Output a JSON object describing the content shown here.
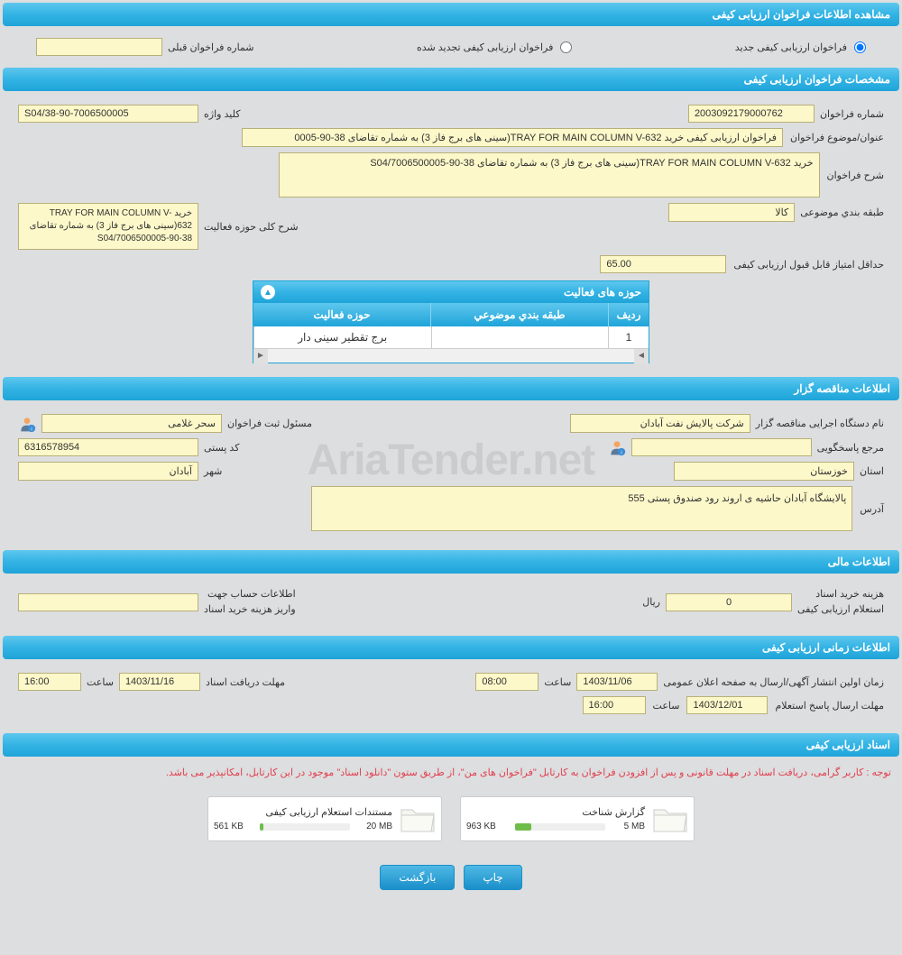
{
  "headers": {
    "main": "مشاهده اطلاعات فراخوان ارزیابی کیفی",
    "spec": "مشخصات فراخوان ارزیابی کیفی",
    "tenderer": "اطلاعات مناقصه گزار",
    "financial": "اطلاعات مالی",
    "timing": "اطلاعات زمانی ارزیابی کیفی",
    "docs": "اسناد ارزیابی کیفی"
  },
  "radios": {
    "new_label": "فراخوان ارزیابی کیفی جدید",
    "renewed_label": "فراخوان ارزیابی کیفی تجدید شده",
    "prev_num_label": "شماره فراخوان قبلی"
  },
  "spec": {
    "call_num_label": "شماره فراخوان",
    "call_num": "2003092179000762",
    "keyword_label": "کلید واژه",
    "keyword": "S04/38-90-7006500005",
    "subject_label": "عنوان/موضوع فراخوان",
    "subject": "فراخوان ارزیابی کیفی خرید TRAY FOR MAIN COLUMN V-632(سینی های برج فاز 3) به شماره تقاضای 38-90-0005",
    "desc_label": "شرح فراخوان",
    "desc": "خرید TRAY FOR MAIN COLUMN V-632(سینی های برج فاز 3) به شماره تقاضای 38-90-7006500005/S04",
    "category_label": "طبقه بندي موضوعی",
    "category": "کالا",
    "overall_label": "شرح کلی حوزه فعالیت",
    "overall": "خرید TRAY FOR MAIN COLUMN V-632(سینی های برج فاز 3) به شماره تقاضای S04/7006500005-90-38",
    "min_score_label": "حداقل امتیاز قابل قبول ارزیابی کیفی",
    "min_score": "65.00"
  },
  "activity": {
    "title": "حوزه های فعالیت",
    "th_row": "ردیف",
    "th_cat": "طبقه بندي موضوعي",
    "th_act": "حوزه فعالیت",
    "rows": [
      {
        "n": "1",
        "cat": "",
        "act": "برج تقطیر سینی دار"
      }
    ]
  },
  "tenderer": {
    "org_label": "نام دستگاه اجرایی مناقصه گزار",
    "org": "شركت پالايش نفت آبادان",
    "registrar_label": "مسئول ثبت فراخوان",
    "registrar": "سحر غلامی",
    "contact_label": "مرجع پاسخگویی",
    "contact": "",
    "postal_label": "کد پستی",
    "postal": "6316578954",
    "province_label": "استان",
    "province": "خوزستان",
    "city_label": "شهر",
    "city": "آبادان",
    "address_label": "آدرس",
    "address": "پالایشگاه آبادان حاشیه ی اروند رود صندوق پستی 555"
  },
  "financial": {
    "cost_label1": "هزینه خرید اسناد",
    "cost_label2": "استعلام ارزیابی کیفی",
    "cost": "0",
    "currency": "ریال",
    "account_label1": "اطلاعات حساب جهت",
    "account_label2": "واریز هزینه خرید اسناد"
  },
  "timing": {
    "pub_label": "زمان اولین انتشار آگهی/ارسال به صفحه اعلان عمومی",
    "pub_date": "1403/11/06",
    "pub_time": "08:00",
    "time_label": "ساعت",
    "deadline_label": "مهلت دریافت اسناد",
    "deadline_date": "1403/11/16",
    "deadline_time": "16:00",
    "response_label": "مهلت ارسال پاسخ استعلام",
    "response_date": "1403/12/01",
    "response_time": "16:00"
  },
  "docs": {
    "notice": "توجه : کاربر گرامی، دریافت اسناد در مهلت قانونی و پس از افزودن فراخوان به کارتابل \"فراخوان های من\"، از طریق ستون \"دانلود اسناد\" موجود در این کارتابل، امکانپذیر می باشد.",
    "items": [
      {
        "title": "گزارش شناخت",
        "size": "963 KB",
        "max": "5 MB",
        "fill_pct": 18
      },
      {
        "title": "مستندات استعلام ارزیابی کیفی",
        "size": "561 KB",
        "max": "20 MB",
        "fill_pct": 4
      }
    ]
  },
  "buttons": {
    "print": "چاپ",
    "back": "بازگشت"
  },
  "watermark": "AriaTender.net",
  "colors": {
    "header_grad_top": "#5ec7ee",
    "header_grad_bot": "#1fa4d9",
    "value_bg": "#fdf8c9",
    "value_border": "#b8b07a",
    "page_bg": "#dddedf",
    "notice_color": "#e04050",
    "progress_fill": "#6ebd4a"
  }
}
